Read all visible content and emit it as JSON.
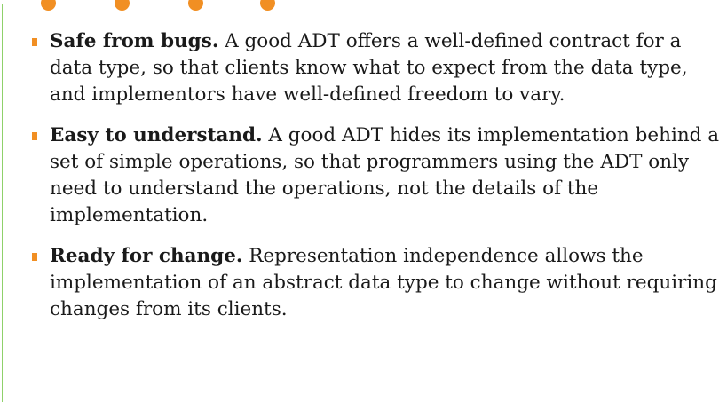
{
  "colors": {
    "accent": "#f18f23",
    "frame_line": "#8fd16a",
    "text": "#1a1a1a"
  },
  "bullets": [
    {
      "lead": "Safe from bugs.",
      "body": " A good ADT offers a well-defined contract for a data type, so that clients know what to expect from the data type, and implementors have well-defined freedom to vary."
    },
    {
      "lead": "Easy to understand.",
      "body": " A good ADT hides its implementation behind a set of simple operations, so that programmers using the ADT only need to understand the operations, not the details of the implementation."
    },
    {
      "lead": "Ready for change.",
      "body": " Representation independence allows the implementation of an abstract data type to change without requiring changes from its clients."
    }
  ]
}
